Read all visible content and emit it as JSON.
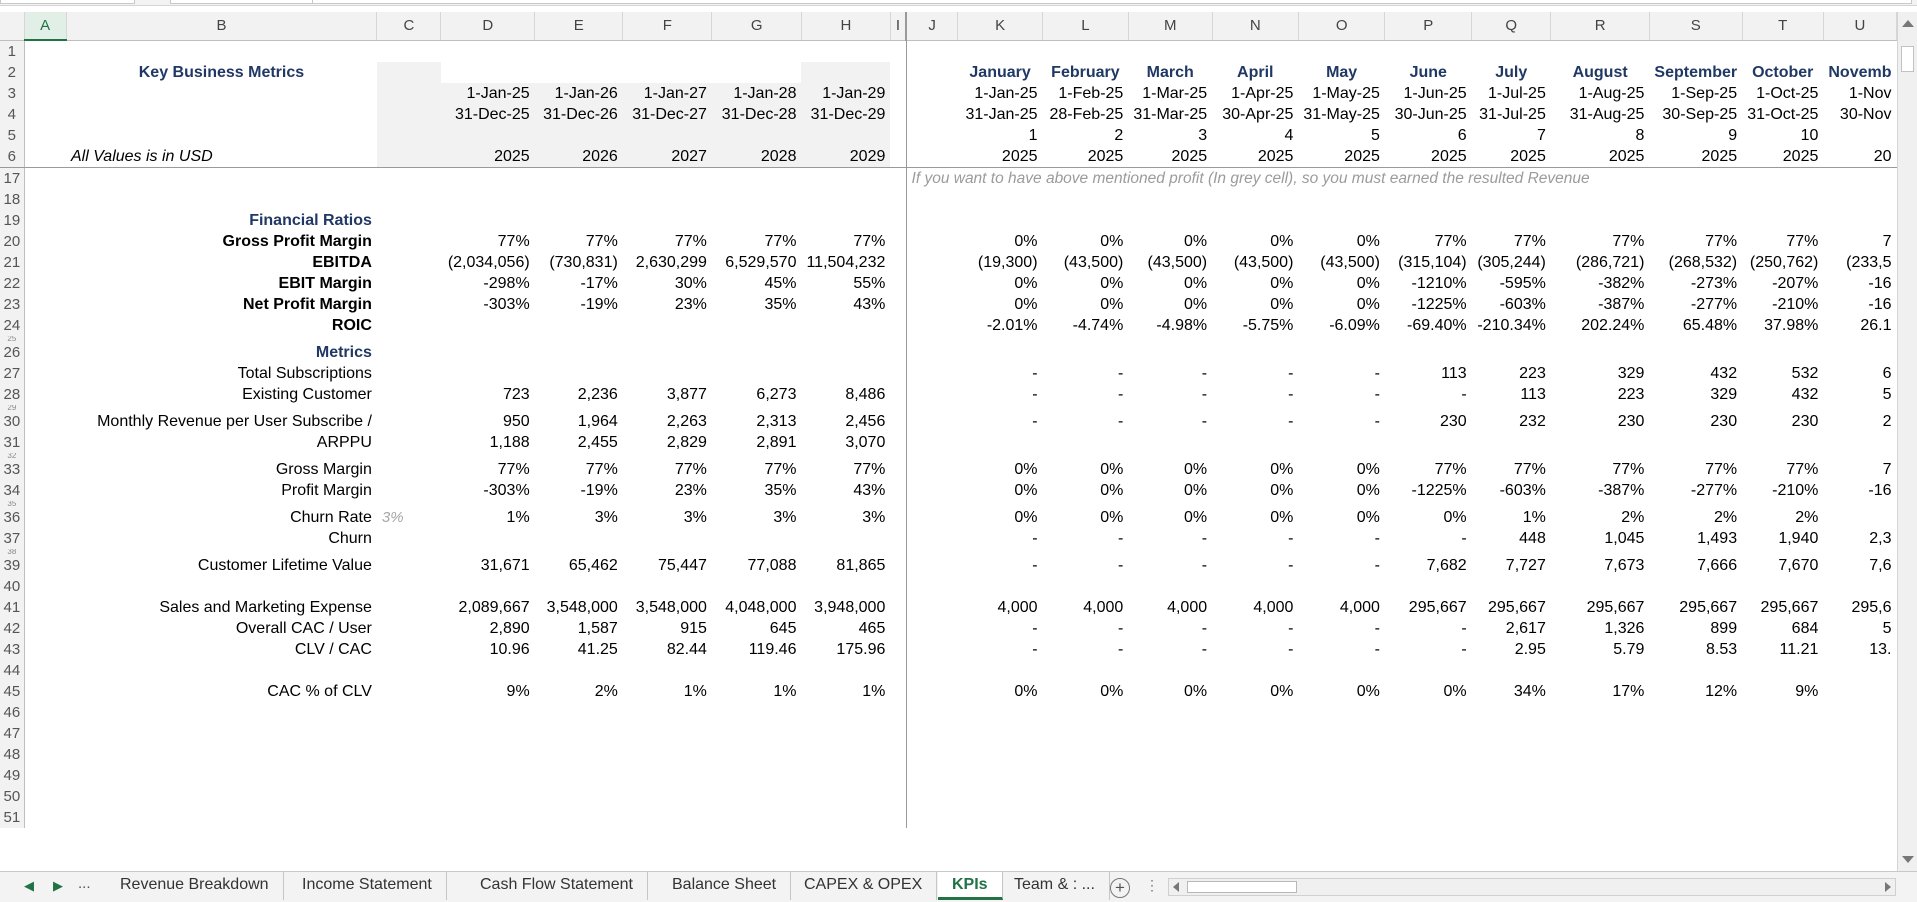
{
  "columns": [
    "A",
    "B",
    "C",
    "D",
    "E",
    "F",
    "G",
    "H",
    "I",
    "J",
    "K",
    "L",
    "M",
    "N",
    "O",
    "P",
    "Q",
    "R",
    "S",
    "T",
    "U"
  ],
  "header": {
    "title": "Key Business Metrics",
    "units_note": "All Values is in USD",
    "annual_starts": [
      "1-Jan-25",
      "1-Jan-26",
      "1-Jan-27",
      "1-Jan-28",
      "1-Jan-29"
    ],
    "annual_ends": [
      "31-Dec-25",
      "31-Dec-26",
      "31-Dec-27",
      "31-Dec-28",
      "31-Dec-29"
    ],
    "annual_years": [
      "2025",
      "2026",
      "2027",
      "2028",
      "2029"
    ],
    "months": [
      "January",
      "February",
      "March",
      "April",
      "May",
      "June",
      "July",
      "August",
      "September",
      "October",
      "Novemb"
    ],
    "month_starts": [
      "1-Jan-25",
      "1-Feb-25",
      "1-Mar-25",
      "1-Apr-25",
      "1-May-25",
      "1-Jun-25",
      "1-Jul-25",
      "1-Aug-25",
      "1-Sep-25",
      "1-Oct-25",
      "1-Nov"
    ],
    "month_ends": [
      "31-Jan-25",
      "28-Feb-25",
      "31-Mar-25",
      "30-Apr-25",
      "31-May-25",
      "30-Jun-25",
      "31-Jul-25",
      "31-Aug-25",
      "30-Sep-25",
      "31-Oct-25",
      "30-Nov"
    ],
    "month_index": [
      "1",
      "2",
      "3",
      "4",
      "5",
      "6",
      "7",
      "8",
      "9",
      "10",
      ""
    ],
    "month_years": [
      "2025",
      "2025",
      "2025",
      "2025",
      "2025",
      "2025",
      "2025",
      "2025",
      "2025",
      "2025",
      "20"
    ]
  },
  "note": "If you want to have above mentioned profit (In grey cell), so you must earned the resulted Revenue",
  "rows": [
    {
      "n": "17",
      "type": "note"
    },
    {
      "n": "18",
      "type": "blank"
    },
    {
      "n": "19",
      "type": "section",
      "label": "Financial Ratios"
    },
    {
      "n": "20",
      "type": "data",
      "label": "Gross Profit Margin",
      "bold": true,
      "annual": [
        "77%",
        "77%",
        "77%",
        "77%",
        "77%"
      ],
      "monthly": [
        "0%",
        "0%",
        "0%",
        "0%",
        "0%",
        "77%",
        "77%",
        "77%",
        "77%",
        "77%",
        "7"
      ]
    },
    {
      "n": "21",
      "type": "data",
      "label": "EBITDA",
      "bold": true,
      "annual": [
        "(2,034,056)",
        "(730,831)",
        "2,630,299",
        "6,529,570",
        "11,504,232"
      ],
      "monthly": [
        "(19,300)",
        "(43,500)",
        "(43,500)",
        "(43,500)",
        "(43,500)",
        "(315,104)",
        "(305,244)",
        "(286,721)",
        "(268,532)",
        "(250,762)",
        "(233,5"
      ]
    },
    {
      "n": "22",
      "type": "data",
      "label": "EBIT Margin",
      "bold": true,
      "annual": [
        "-298%",
        "-17%",
        "30%",
        "45%",
        "55%"
      ],
      "monthly": [
        "0%",
        "0%",
        "0%",
        "0%",
        "0%",
        "-1210%",
        "-595%",
        "-382%",
        "-273%",
        "-207%",
        "-16"
      ]
    },
    {
      "n": "23",
      "type": "data",
      "label": "Net Profit Margin",
      "bold": true,
      "annual": [
        "-303%",
        "-19%",
        "23%",
        "35%",
        "43%"
      ],
      "monthly": [
        "0%",
        "0%",
        "0%",
        "0%",
        "0%",
        "-1225%",
        "-603%",
        "-387%",
        "-277%",
        "-210%",
        "-16"
      ]
    },
    {
      "n": "24",
      "type": "data",
      "label": "ROIC",
      "bold": true,
      "annual": [
        "",
        "",
        "",
        "",
        ""
      ],
      "monthly": [
        "-2.01%",
        "-4.74%",
        "-4.98%",
        "-5.75%",
        "-6.09%",
        "-69.40%",
        "-210.34%",
        "202.24%",
        "65.48%",
        "37.98%",
        "26.1"
      ]
    },
    {
      "n": "25",
      "type": "squash"
    },
    {
      "n": "26",
      "type": "section",
      "label": "Metrics"
    },
    {
      "n": "27",
      "type": "data",
      "label": "Total Subscriptions",
      "annual": [
        "",
        "",
        "",
        "",
        ""
      ],
      "monthly": [
        "-",
        "-",
        "-",
        "-",
        "-",
        "113",
        "223",
        "329",
        "432",
        "532",
        "6"
      ]
    },
    {
      "n": "28",
      "type": "data",
      "label": "Existing Customer",
      "annual": [
        "723",
        "2,236",
        "3,877",
        "6,273",
        "8,486"
      ],
      "monthly": [
        "-",
        "-",
        "-",
        "-",
        "-",
        "-",
        "113",
        "223",
        "329",
        "432",
        "5"
      ]
    },
    {
      "n": "29",
      "type": "squash"
    },
    {
      "n": "30",
      "type": "data",
      "label": "Monthly Revenue per User  Subscribe /",
      "annual": [
        "950",
        "1,964",
        "2,263",
        "2,313",
        "2,456"
      ],
      "monthly": [
        "-",
        "-",
        "-",
        "-",
        "-",
        "230",
        "232",
        "230",
        "230",
        "230",
        "2"
      ]
    },
    {
      "n": "31",
      "type": "data",
      "label": "ARPPU",
      "annual": [
        "1,188",
        "2,455",
        "2,829",
        "2,891",
        "3,070"
      ],
      "monthly": [
        "",
        "",
        "",
        "",
        "",
        "",
        "",
        "",
        "",
        "",
        ""
      ]
    },
    {
      "n": "32",
      "type": "squash"
    },
    {
      "n": "33",
      "type": "data",
      "label": "Gross Margin",
      "annual": [
        "77%",
        "77%",
        "77%",
        "77%",
        "77%"
      ],
      "monthly": [
        "0%",
        "0%",
        "0%",
        "0%",
        "0%",
        "77%",
        "77%",
        "77%",
        "77%",
        "77%",
        "7"
      ]
    },
    {
      "n": "34",
      "type": "data",
      "label": "Profit Margin",
      "annual": [
        "-303%",
        "-19%",
        "23%",
        "35%",
        "43%"
      ],
      "monthly": [
        "0%",
        "0%",
        "0%",
        "0%",
        "0%",
        "-1225%",
        "-603%",
        "-387%",
        "-277%",
        "-210%",
        "-16"
      ]
    },
    {
      "n": "35",
      "type": "squash"
    },
    {
      "n": "36",
      "type": "data",
      "label": "Churn Rate",
      "hint": "3%",
      "annual": [
        "1%",
        "3%",
        "3%",
        "3%",
        "3%"
      ],
      "monthly": [
        "0%",
        "0%",
        "0%",
        "0%",
        "0%",
        "0%",
        "1%",
        "2%",
        "2%",
        "2%",
        ""
      ]
    },
    {
      "n": "37",
      "type": "data",
      "label": "Churn",
      "annual": [
        "",
        "",
        "",
        "",
        ""
      ],
      "monthly": [
        "-",
        "-",
        "-",
        "-",
        "-",
        "-",
        "448",
        "1,045",
        "1,493",
        "1,940",
        "2,3"
      ]
    },
    {
      "n": "38",
      "type": "squash"
    },
    {
      "n": "39",
      "type": "data",
      "label": "Customer Lifetime Value",
      "annual": [
        "31,671",
        "65,462",
        "75,447",
        "77,088",
        "81,865"
      ],
      "monthly": [
        "-",
        "-",
        "-",
        "-",
        "-",
        "7,682",
        "7,727",
        "7,673",
        "7,666",
        "7,670",
        "7,6"
      ]
    },
    {
      "n": "40",
      "type": "blank"
    },
    {
      "n": "41",
      "type": "data",
      "label": "Sales and Marketing Expense",
      "annual": [
        "2,089,667",
        "3,548,000",
        "3,548,000",
        "4,048,000",
        "3,948,000"
      ],
      "monthly": [
        "4,000",
        "4,000",
        "4,000",
        "4,000",
        "4,000",
        "295,667",
        "295,667",
        "295,667",
        "295,667",
        "295,667",
        "295,6"
      ]
    },
    {
      "n": "42",
      "type": "data",
      "label": "Overall CAC / User",
      "annual": [
        "2,890",
        "1,587",
        "915",
        "645",
        "465"
      ],
      "monthly": [
        "-",
        "-",
        "-",
        "-",
        "-",
        "-",
        "2,617",
        "1,326",
        "899",
        "684",
        "5"
      ]
    },
    {
      "n": "43",
      "type": "data",
      "label": "CLV / CAC",
      "annual": [
        "10.96",
        "41.25",
        "82.44",
        "119.46",
        "175.96"
      ],
      "monthly": [
        "-",
        "-",
        "-",
        "-",
        "-",
        "-",
        "2.95",
        "5.79",
        "8.53",
        "11.21",
        "13."
      ]
    },
    {
      "n": "44",
      "type": "blank"
    },
    {
      "n": "45",
      "type": "data",
      "label": "CAC % of CLV",
      "annual": [
        "9%",
        "2%",
        "1%",
        "1%",
        "1%"
      ],
      "monthly": [
        "0%",
        "0%",
        "0%",
        "0%",
        "0%",
        "0%",
        "34%",
        "17%",
        "12%",
        "9%",
        ""
      ]
    },
    {
      "n": "46",
      "type": "blank"
    },
    {
      "n": "47",
      "type": "blank"
    },
    {
      "n": "48",
      "type": "blank"
    },
    {
      "n": "49",
      "type": "blank"
    },
    {
      "n": "50",
      "type": "blank"
    },
    {
      "n": "51",
      "type": "blank"
    }
  ],
  "tabs": {
    "ellipsis": "...",
    "items": [
      "Revenue Breakdown",
      "Income Statement",
      "Cash Flow Statement",
      "Balance Sheet",
      "CAPEX & OPEX",
      "KPIs",
      "Team & : ..."
    ],
    "active": "KPIs"
  },
  "colors": {
    "accent": "#217346",
    "header_navy": "#203864",
    "grey_cell": "#f2f2f2"
  }
}
